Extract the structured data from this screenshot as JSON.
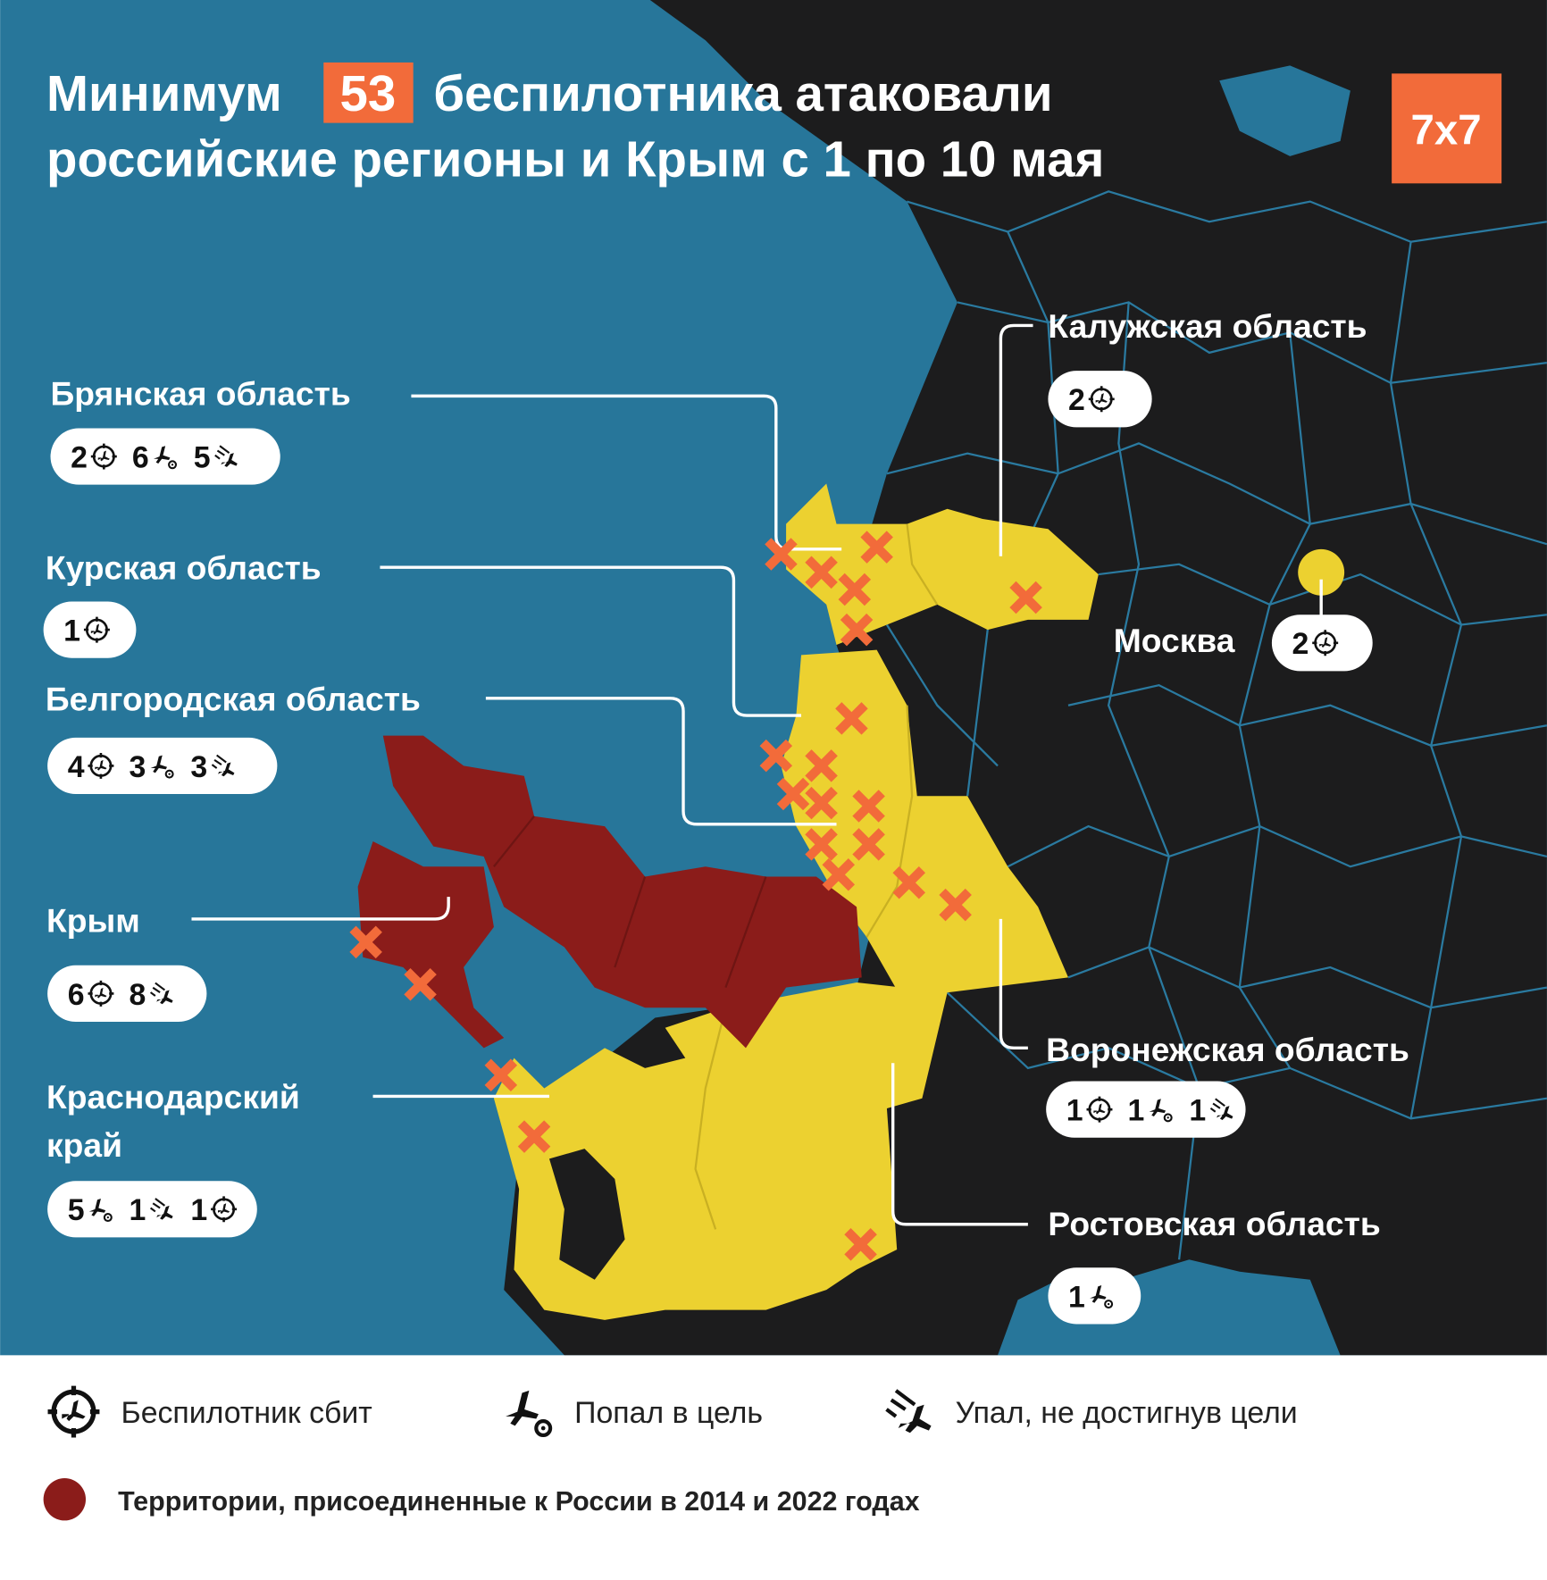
{
  "title": {
    "prefix": "Минимум",
    "number": "53",
    "line1_rest": "беспилотника атаковали",
    "line2": "российские регионы и Крым с 1 по 10 мая"
  },
  "logo": "7x7",
  "colors": {
    "sea": "#27769a",
    "land": "#1c1c1d",
    "borders": "#2a7aa0",
    "attacked_region": "#ecd130",
    "annexed_territory": "#8b1c1a",
    "marker": "#f26b3a",
    "accent": "#f26b3a"
  },
  "regions": [
    {
      "label": [
        "Брянская область"
      ],
      "stats": [
        {
          "count": "2",
          "type": "shot-down"
        },
        {
          "count": "6",
          "type": "hit-target"
        },
        {
          "count": "5",
          "type": "fell"
        }
      ]
    },
    {
      "label": [
        "Курская область"
      ],
      "stats": [
        {
          "count": "1",
          "type": "shot-down"
        }
      ]
    },
    {
      "label": [
        "Белгородская область"
      ],
      "stats": [
        {
          "count": "4",
          "type": "shot-down"
        },
        {
          "count": "3",
          "type": "hit-target"
        },
        {
          "count": "3",
          "type": "fell"
        }
      ]
    },
    {
      "label": [
        "Крым"
      ],
      "stats": [
        {
          "count": "6",
          "type": "shot-down"
        },
        {
          "count": "8",
          "type": "fell"
        }
      ]
    },
    {
      "label": [
        "Краснодарский",
        "край"
      ],
      "stats": [
        {
          "count": "5",
          "type": "hit-target"
        },
        {
          "count": "1",
          "type": "fell"
        },
        {
          "count": "1",
          "type": "shot-down"
        }
      ]
    },
    {
      "label": [
        "Калужская область"
      ],
      "stats": [
        {
          "count": "2",
          "type": "shot-down"
        }
      ]
    },
    {
      "label": [
        "Москва"
      ],
      "stats": [
        {
          "count": "2",
          "type": "shot-down"
        }
      ]
    },
    {
      "label": [
        "Воронежская область"
      ],
      "stats": [
        {
          "count": "1",
          "type": "shot-down"
        },
        {
          "count": "1",
          "type": "hit-target"
        },
        {
          "count": "1",
          "type": "fell"
        }
      ]
    },
    {
      "label": [
        "Ростовская область"
      ],
      "stats": [
        {
          "count": "1",
          "type": "hit-target"
        }
      ]
    }
  ],
  "legend": {
    "shot_down": "Беспилотник сбит",
    "hit_target": "Попал в цель",
    "fell": "Упал, не достигнув цели",
    "annexed": "Территории, присоединенные к России в 2014 и 2022 годах"
  }
}
